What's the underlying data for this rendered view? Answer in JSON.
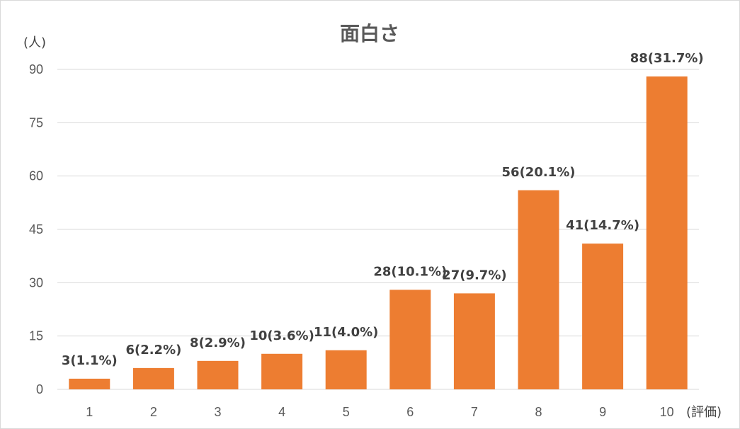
{
  "chart_data": {
    "type": "bar",
    "title": "面白さ",
    "ylabel": "(人)",
    "xlabel": "(評価)",
    "categories": [
      "1",
      "2",
      "3",
      "4",
      "5",
      "6",
      "7",
      "8",
      "9",
      "10"
    ],
    "values": [
      3,
      6,
      8,
      10,
      11,
      28,
      27,
      56,
      41,
      88
    ],
    "data_labels": [
      "3(1.1%)",
      "6(2.2%)",
      "8(2.9%)",
      "10(3.6%)",
      "11(4.0%)",
      "28(10.1%)",
      "27(9.7%)",
      "56(20.1%)",
      "41(14.7%)",
      "88(31.7%)"
    ],
    "yticks": [
      0,
      15,
      30,
      45,
      60,
      75,
      90
    ],
    "ylim": [
      0,
      90
    ],
    "grid": true,
    "legend": "none",
    "bar_color": "#ed7d31"
  }
}
